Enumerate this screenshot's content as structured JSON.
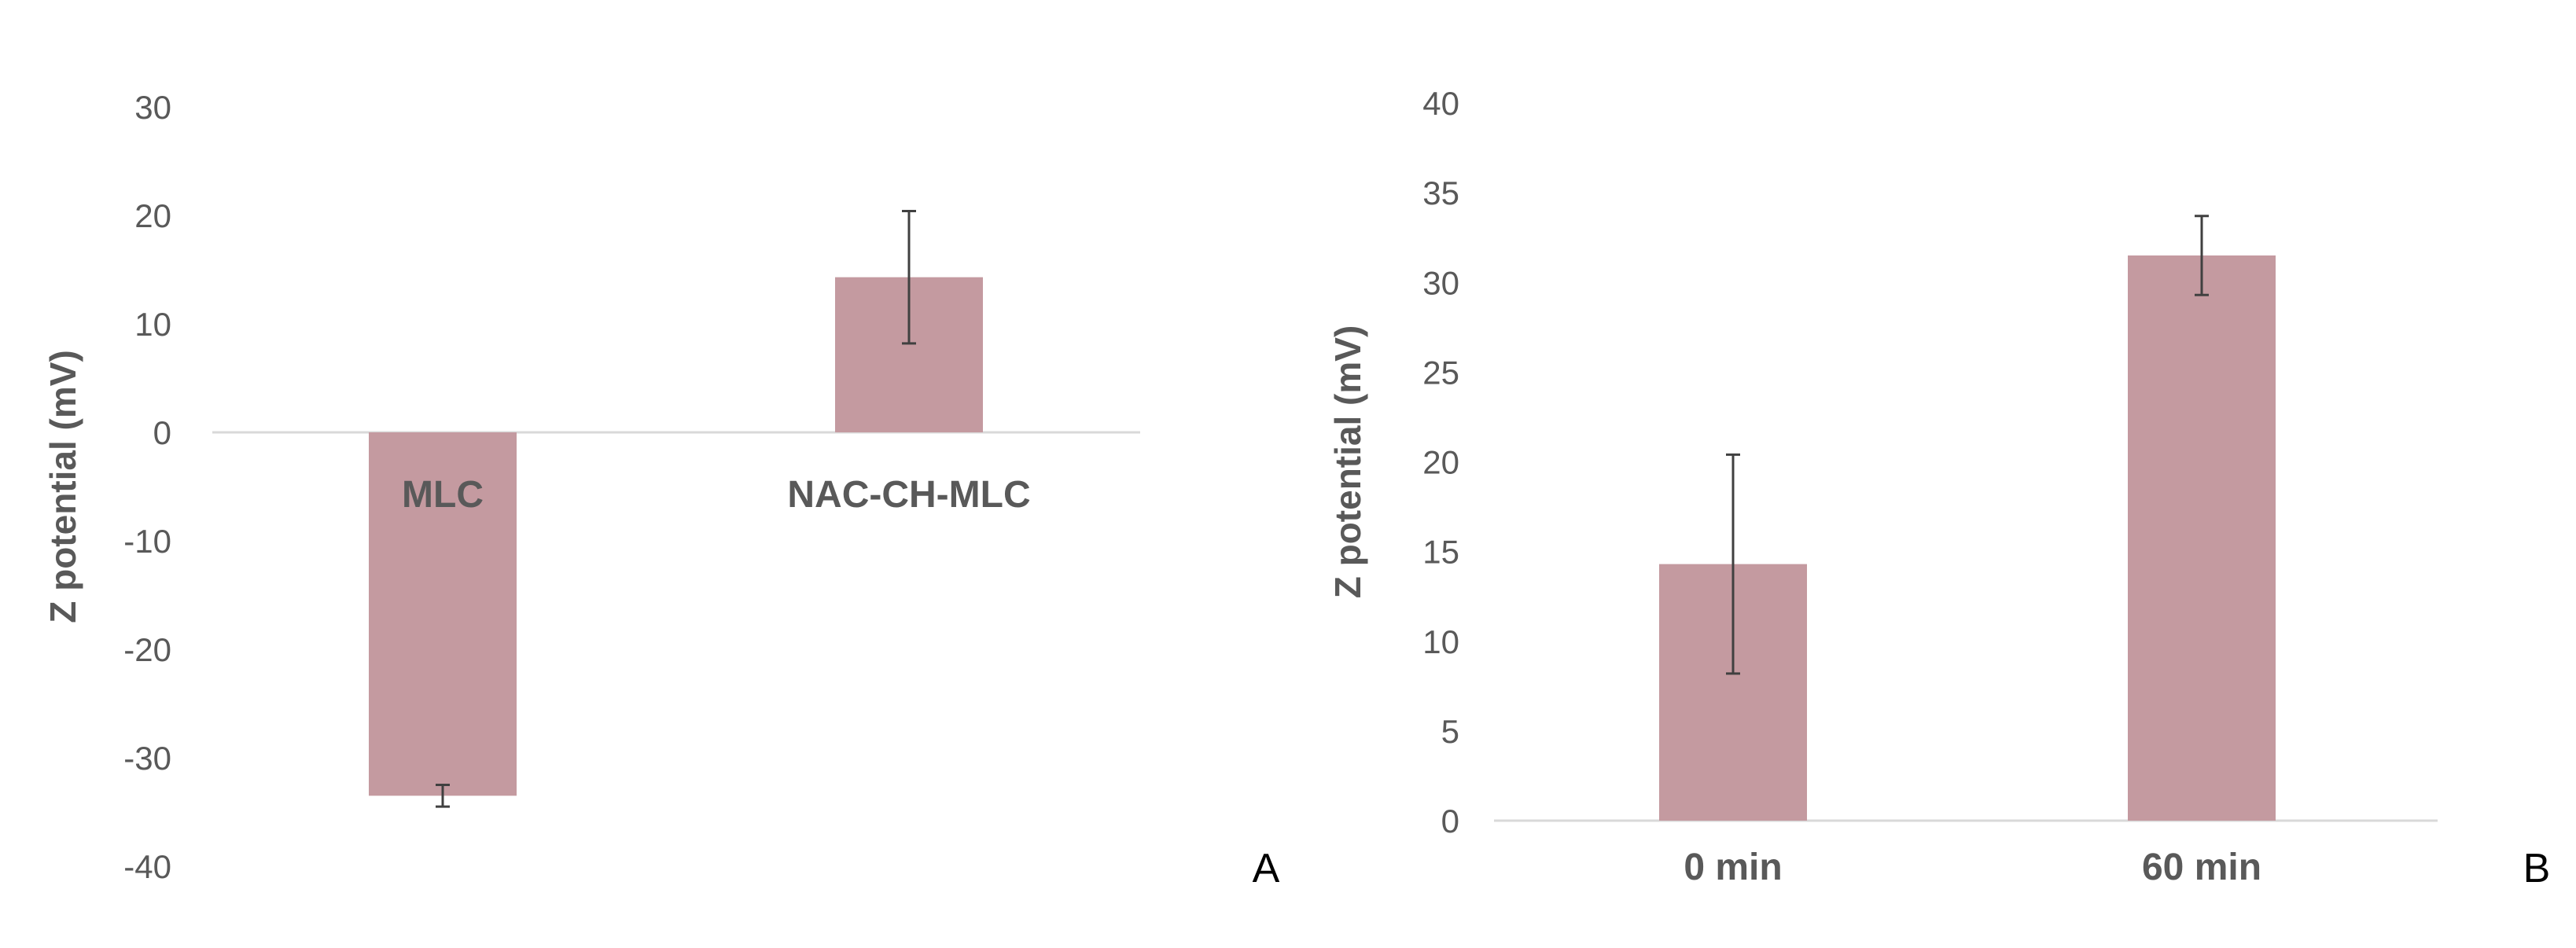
{
  "colors": {
    "bar": "#c49aa0",
    "axis": "#d9d9d9",
    "error": "#404040",
    "text": "#595959"
  },
  "chart_data": [
    {
      "type": "bar",
      "panel_label": "A",
      "ylabel": "Z potential (mV)",
      "ylim": [
        -40,
        30
      ],
      "yticks": [
        30,
        20,
        10,
        0,
        -10,
        -20,
        -30,
        -40
      ],
      "categories": [
        "MLC",
        "NAC-CH-MLC"
      ],
      "values": [
        -33.5,
        14.3
      ],
      "errors": [
        1.0,
        6.1
      ],
      "grid": false
    },
    {
      "type": "bar",
      "panel_label": "B",
      "ylabel": "Z potential (mV)",
      "ylim": [
        0,
        40
      ],
      "yticks": [
        40,
        35,
        30,
        25,
        20,
        15,
        10,
        5,
        0
      ],
      "categories": [
        "0 min",
        "60 min"
      ],
      "values": [
        14.3,
        31.5
      ],
      "errors": [
        6.1,
        2.2
      ],
      "grid": false
    }
  ]
}
